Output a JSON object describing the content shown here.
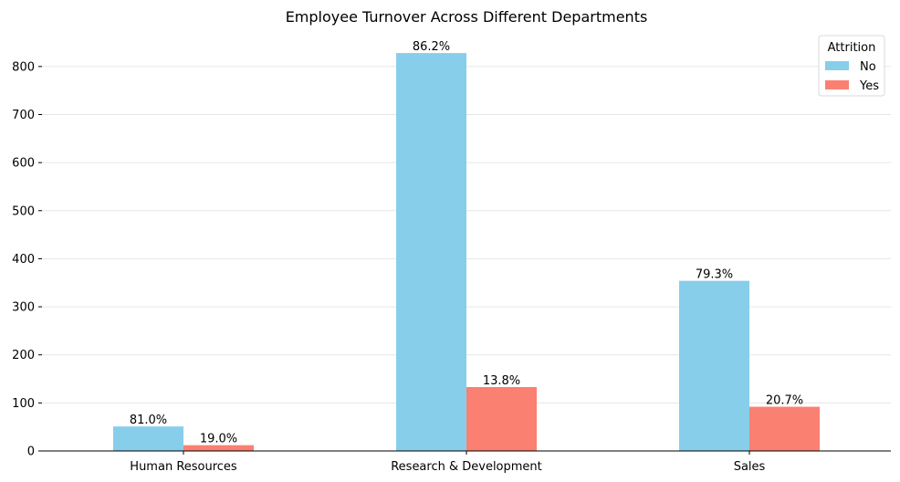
{
  "chart_data": {
    "type": "bar",
    "title": "Employee Turnover Across Different Departments",
    "xlabel": "",
    "ylabel": "",
    "categories": [
      "Human Resources",
      "Research & Development",
      "Sales"
    ],
    "series": [
      {
        "name": "No",
        "color": "#87CEEB",
        "values": [
          51,
          828,
          354
        ],
        "labels": [
          "81.0%",
          "86.2%",
          "79.3%"
        ]
      },
      {
        "name": "Yes",
        "color": "#FA8072",
        "values": [
          12,
          133,
          92
        ],
        "labels": [
          "19.0%",
          "13.8%",
          "20.7%"
        ]
      }
    ],
    "ylim": [
      0,
      870
    ],
    "yticks": [
      0,
      100,
      200,
      300,
      400,
      500,
      600,
      700,
      800
    ],
    "ytick_labels": [
      "0",
      "100",
      "200",
      "300",
      "400",
      "500",
      "600",
      "700",
      "800"
    ],
    "grid": "y",
    "legend": {
      "title": "Attrition",
      "position": "top-right"
    }
  }
}
